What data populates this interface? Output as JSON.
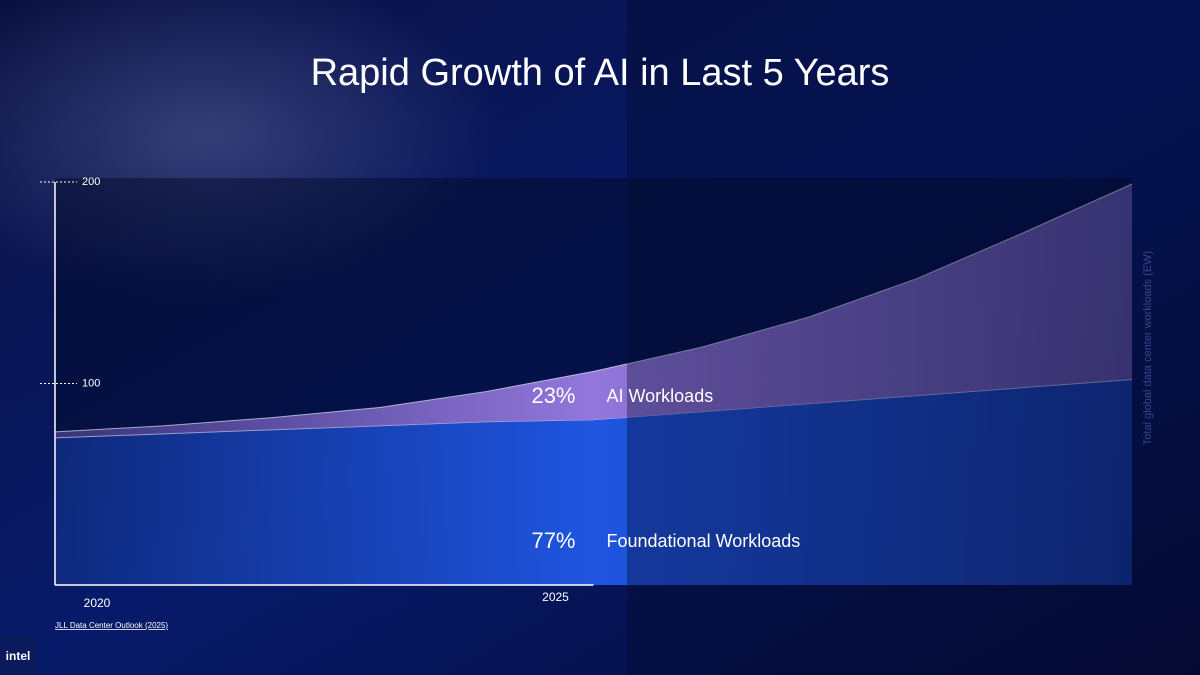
{
  "chart_data": {
    "type": "area",
    "stacked": true,
    "title": "Rapid Growth of AI in Last 5 Years",
    "y_label": "Total global data center workloads (EW)",
    "source": "JLL Data Center Outlook (2025)",
    "logo": "intel",
    "x": [
      2020,
      2021,
      2022,
      2023,
      2024,
      2025,
      2026,
      2027,
      2028,
      2029,
      2030
    ],
    "xlim": [
      2020,
      2030
    ],
    "xticks": [
      2020,
      2025
    ],
    "ylim": [
      0,
      200
    ],
    "yticks": [
      100,
      200
    ],
    "series": [
      {
        "name": "Foundational Workloads",
        "color": "#1f55e0",
        "share_label": "77%",
        "values": [
          73,
          75,
          77,
          79,
          81,
          82,
          86,
          90,
          94,
          98,
          102
        ]
      },
      {
        "name": "AI Workloads",
        "color": "#9377dc",
        "share_label": "23%",
        "values": [
          3,
          4,
          6,
          9,
          15,
          24,
          32,
          43,
          58,
          77,
          97
        ]
      }
    ]
  }
}
